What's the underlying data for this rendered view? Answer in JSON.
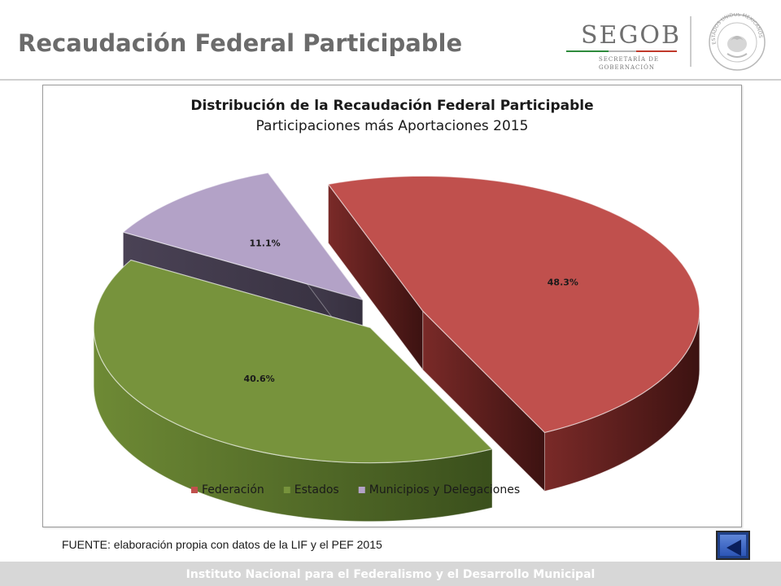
{
  "slide": {
    "title": "Recaudación Federal Participable"
  },
  "logo": {
    "word": "SEGOB",
    "line1": "SECRETARÍA DE",
    "line2": "GOBERNACIÓN",
    "seal_text": "ESTADOS UNIDOS MEXICANOS"
  },
  "colors": {
    "federacion": "#c0504d",
    "estados": "#77933c",
    "municipios": "#b3a2c7",
    "title_gray": "#6b6b6b",
    "footer_bg": "#d7d7d7",
    "back_button": "#1e3f88"
  },
  "chart_data": {
    "type": "pie",
    "title": "Distribución de la Recaudación Federal Participable",
    "subtitle": "Participaciones más Aportaciones 2015",
    "categories": [
      "Federación",
      "Estados",
      "Municipios y Delegaciones"
    ],
    "values": [
      48.3,
      40.6,
      11.1
    ],
    "labels": [
      "48.3%",
      "40.6%",
      "11.1%"
    ],
    "style": "3d-exploded",
    "legend": "bottom",
    "grid": false
  },
  "source_note": "FUENTE: elaboración propia con datos de la LIF y el PEF 2015",
  "back_button": {
    "icon": "back-arrow-icon"
  },
  "footer": {
    "text": "Instituto Nacional para el Federalismo y el Desarrollo Municipal"
  }
}
